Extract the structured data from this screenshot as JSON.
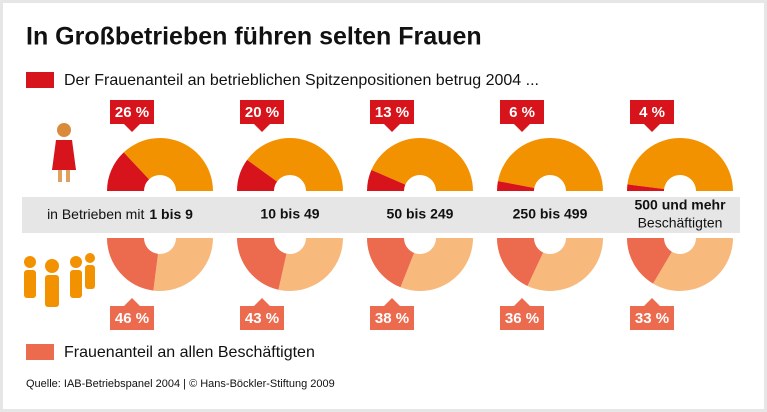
{
  "chart_data": {
    "type": "semi-donut",
    "title": "In Großbetrieben führen selten Frauen",
    "category_prefix": "in Betrieben mit",
    "categories": [
      "1 bis 9",
      "10 bis 49",
      "50 bis 249",
      "250 bis 499",
      "500 und mehr"
    ],
    "category_suffix": "Beschäftigten",
    "series": [
      {
        "name": "Der Frauenanteil an betrieblichen Spitzenpositionen betrug 2004 ...",
        "color": "#d7141c",
        "rest_color": "#f39200",
        "values": [
          26,
          20,
          13,
          6,
          4
        ],
        "value_labels": [
          "26 %",
          "20 %",
          "13 %",
          "6 %",
          "4 %"
        ]
      },
      {
        "name": "Frauenanteil an allen Beschäftigten",
        "color": "#ec6a4e",
        "rest_color": "#f8b97c",
        "values": [
          46,
          43,
          38,
          36,
          33
        ],
        "value_labels": [
          "46 %",
          "43 %",
          "38 %",
          "36 %",
          "33 %"
        ]
      }
    ],
    "source": "Quelle: IAB-Betriebspanel 2004 | © Hans-Böckler-Stiftung 2009"
  }
}
